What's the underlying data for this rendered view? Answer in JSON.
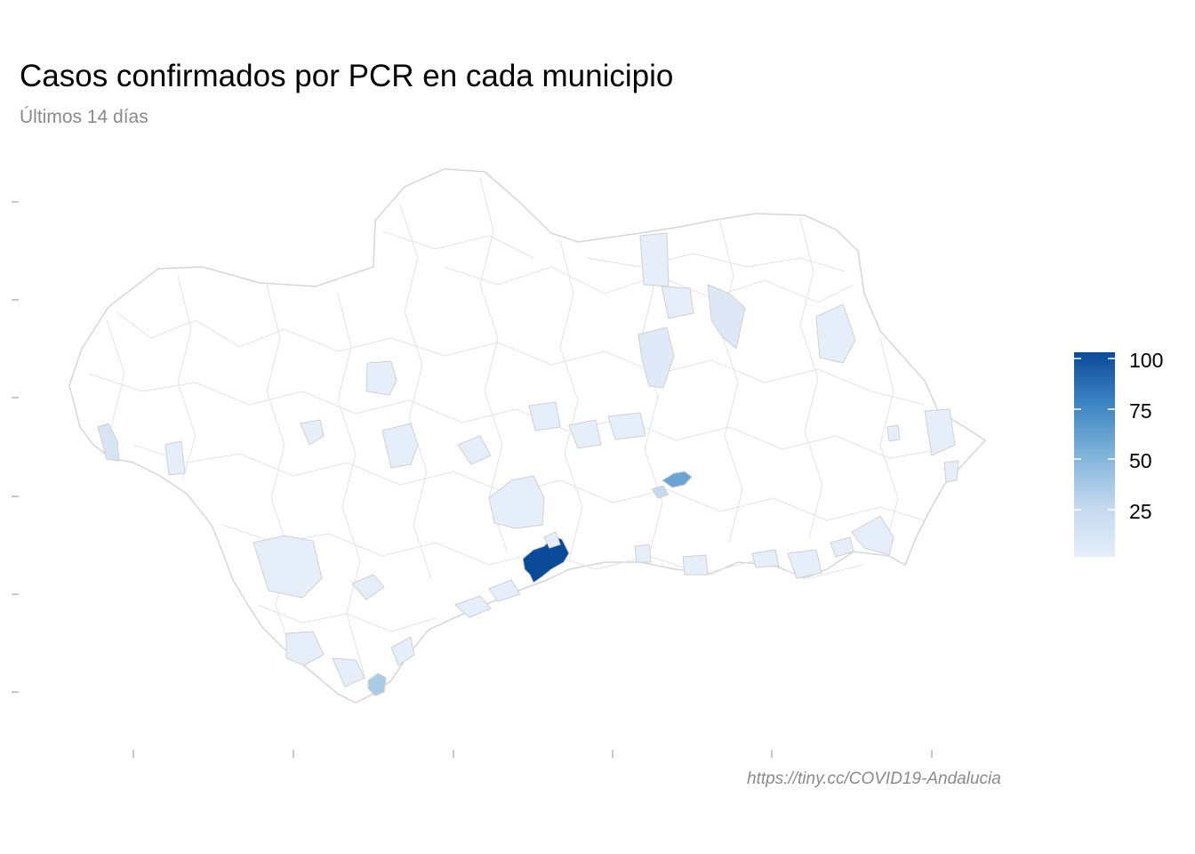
{
  "header": {
    "title": "Casos confirmados por PCR en cada municipio",
    "subtitle": "Últimos 14 días"
  },
  "caption": "https://tiny.cc/COVID19-Andalucia",
  "legend": {
    "labels": [
      "100",
      "75",
      "50",
      "25"
    ],
    "color_low": "#e6eef9",
    "color_high": "#0b4a99",
    "range": [
      0,
      100
    ]
  },
  "colors": {
    "border": "#dcdcdc",
    "base_fill": "#ffffff",
    "tick": "#c8c8c8"
  },
  "highlighted_municipalities": [
    {
      "value": 100
    },
    {
      "value": 45
    },
    {
      "value": 30
    },
    {
      "value": 10
    },
    {
      "value": 8
    },
    {
      "value": 6
    },
    {
      "value": 5
    }
  ]
}
